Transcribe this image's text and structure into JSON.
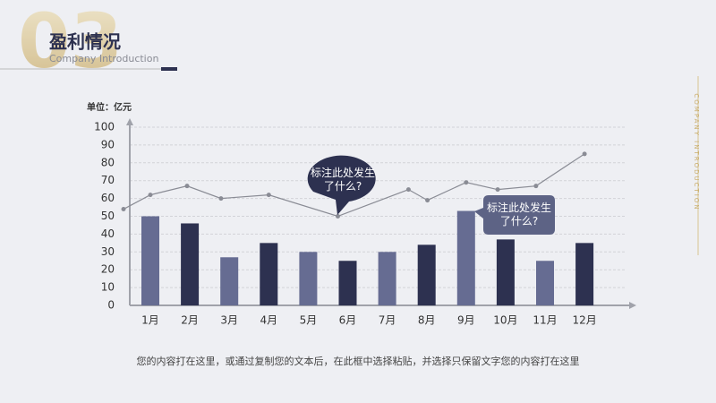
{
  "header": {
    "number": "03",
    "title": "盈利情况",
    "subtitle": "Company Introduction",
    "side_text": "COMPANY INTRODUCTION"
  },
  "chart_data": {
    "type": "bar",
    "unit_label": "单位：亿元",
    "categories": [
      "1月",
      "2月",
      "3月",
      "4月",
      "5月",
      "6月",
      "7月",
      "8月",
      "9月",
      "10月",
      "11月",
      "12月"
    ],
    "ylim": [
      0,
      100
    ],
    "yticks": [
      0,
      10,
      20,
      30,
      40,
      50,
      60,
      70,
      80,
      90,
      100
    ],
    "grid": true,
    "series": [
      {
        "type": "bar",
        "colors": [
          "#666c92",
          "#2d3150",
          "#666c92",
          "#2d3150",
          "#666c92",
          "#2d3150",
          "#666c92",
          "#2d3150",
          "#666c92",
          "#2d3150",
          "#666c92",
          "#2d3150"
        ],
        "values": [
          50,
          46,
          27,
          35,
          30,
          25,
          30,
          34,
          53,
          37,
          25,
          35
        ]
      },
      {
        "type": "line",
        "color": "#8a8c95",
        "x": [
          -0.68,
          0,
          0.93,
          1.79,
          3,
          4.75,
          6.54,
          7.02,
          8,
          8.8,
          9.77,
          11
        ],
        "values": [
          54,
          62,
          67,
          60,
          62,
          50,
          65,
          59,
          69,
          65,
          67,
          85
        ]
      }
    ],
    "annotations": [
      {
        "text": "标注此处发生了什么?"
      },
      {
        "text": "标注此处发生了什么?"
      }
    ]
  },
  "footer": {
    "text": "您的内容打在这里，或通过复制您的文本后，在此框中选择粘贴，并选择只保留文字您的内容打在这里"
  }
}
